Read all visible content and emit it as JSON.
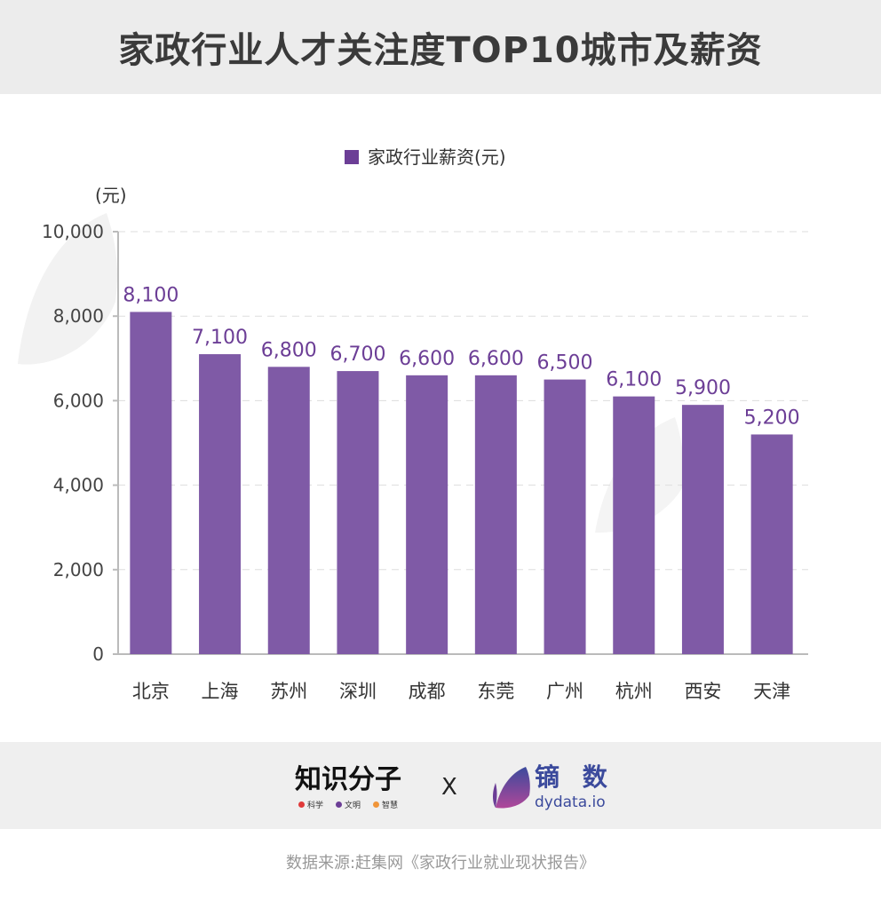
{
  "title": "家政行业人才关注度TOP10城市及薪资",
  "watermark": {
    "cn": "镝 数",
    "en": "dydata.io"
  },
  "chart_data": {
    "type": "bar",
    "title": "家政行业人才关注度TOP10城市及薪资",
    "categories": [
      "北京",
      "上海",
      "苏州",
      "深圳",
      "成都",
      "东莞",
      "广州",
      "杭州",
      "西安",
      "天津"
    ],
    "series": [
      {
        "name": "家政行业薪资(元)",
        "values": [
          8100,
          7100,
          6800,
          6700,
          6600,
          6600,
          6500,
          6100,
          5900,
          5200
        ]
      }
    ],
    "value_labels": [
      "8,100",
      "7,100",
      "6,800",
      "6,700",
      "6,600",
      "6,600",
      "6,500",
      "6,100",
      "5,900",
      "5,200"
    ],
    "ylabel": "(元)",
    "ylim": [
      0,
      10000
    ],
    "yticks": [
      0,
      2000,
      4000,
      6000,
      8000,
      10000
    ],
    "ytick_labels": [
      "0",
      "2,000",
      "4,000",
      "6,000",
      "8,000",
      "10,000"
    ],
    "grid": true,
    "legend": "top-center",
    "color": "#7f5aa6",
    "label_color": "#6c3e96"
  },
  "footer": {
    "brand1": "知识分子",
    "brand1_tags": [
      "科学",
      "文明",
      "智慧"
    ],
    "separator": "X",
    "brand2_cn": "镝 数",
    "brand2_en": "dydata.io"
  },
  "source": "数据来源:赶集网《家政行业就业现状报告》"
}
